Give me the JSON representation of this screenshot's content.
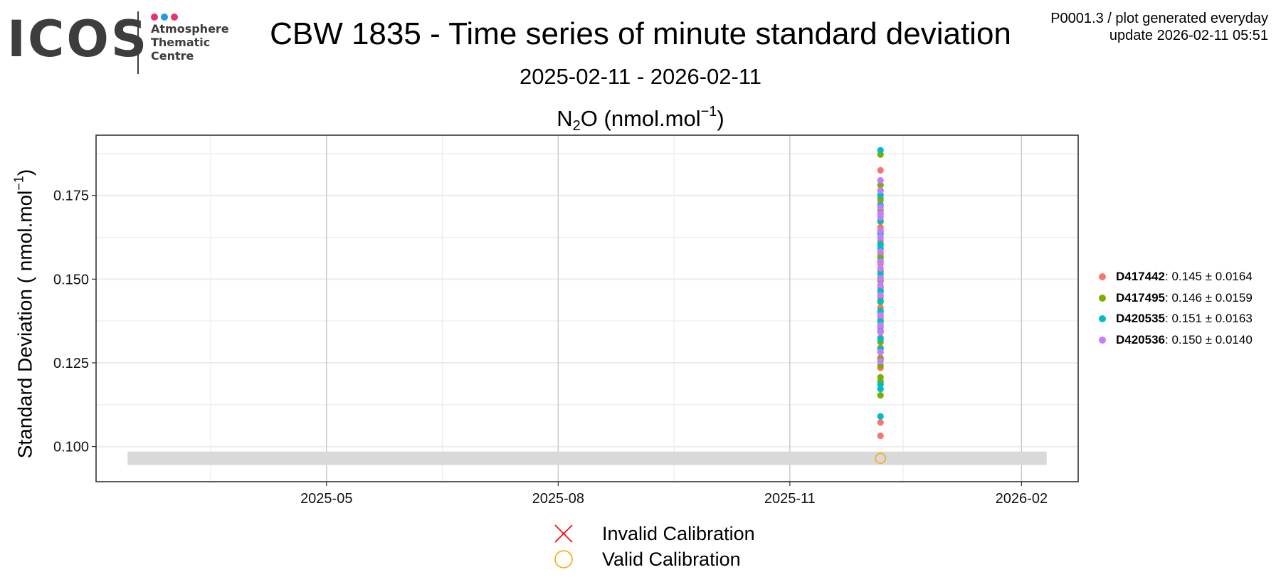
{
  "logo": {
    "text": "ICOS",
    "line1": "Atmosphere",
    "line2": "Thematic",
    "line3": "Centre",
    "dot_colors": [
      "#e8316e",
      "#1e9be5",
      "#e8316e"
    ]
  },
  "header": {
    "title": "CBW 1835 - Time series of minute standard deviation",
    "subtitle": "2025-02-11 - 2026-02-11",
    "species_main": "N",
    "species_sub": "2",
    "species_mid": "O (nmol.mol",
    "species_sup": "−1",
    "species_end": ")",
    "corner_line1": "P0001.3 / plot generated everyday",
    "corner_line2": "update  2026-02-11 05:51"
  },
  "axis": {
    "ylabel_main": "Standard Deviation ( nmol.mol",
    "ylabel_sup": "−1",
    "ylabel_end": ")"
  },
  "chart_data": {
    "type": "scatter",
    "title": "CBW 1835 - Time series of minute standard deviation",
    "subtitle": "2025-02-11 - 2026-02-11",
    "xlabel": "",
    "ylabel": "Standard Deviation ( nmol.mol−1)",
    "x_range": [
      "2025-02-11",
      "2026-02-11"
    ],
    "x_ticks": [
      "2025-05",
      "2025-08",
      "2025-11",
      "2026-02"
    ],
    "ylim": [
      0.0895,
      0.193
    ],
    "y_ticks": [
      0.1,
      0.125,
      0.15,
      0.175
    ],
    "y_tick_labels": [
      "0.100",
      "0.125",
      "0.150",
      "0.175"
    ],
    "grid": true,
    "legend_position": "right",
    "series": [
      {
        "name": "D417442",
        "color": "#F8766D",
        "mean": "0.145",
        "sd": "0.0164",
        "x": "2025-12-07",
        "values": [
          0.1825,
          0.1765,
          0.1735,
          0.1695,
          0.1655,
          0.1615,
          0.1575,
          0.1545,
          0.1505,
          0.1475,
          0.1445,
          0.1415,
          0.1385,
          0.1355,
          0.1325,
          0.1295,
          0.1265,
          0.1235,
          0.1195,
          0.1072,
          0.1032
        ]
      },
      {
        "name": "D417495",
        "color": "#7CAE00",
        "mean": "0.146",
        "sd": "0.0159",
        "x": "2025-12-07",
        "values": [
          0.1872,
          0.1781,
          0.1742,
          0.1705,
          0.1672,
          0.1642,
          0.1602,
          0.1565,
          0.1525,
          0.1495,
          0.1462,
          0.1432,
          0.1402,
          0.1372,
          0.1342,
          0.1312,
          0.1282,
          0.1262,
          0.1242,
          0.1207,
          0.1192,
          0.1153
        ]
      },
      {
        "name": "D420535",
        "color": "#00BFC4",
        "mean": "0.151",
        "sd": "0.0163",
        "x": "2025-12-07",
        "values": [
          0.1885,
          0.1752,
          0.1722,
          0.1675,
          0.1635,
          0.1605,
          0.1592,
          0.1555,
          0.1515,
          0.1465,
          0.1435,
          0.1405,
          0.1375,
          0.1345,
          0.1322,
          0.1292,
          0.1185,
          0.1172,
          0.109
        ]
      },
      {
        "name": "D420536",
        "color": "#C77CFF",
        "mean": "0.150",
        "sd": "0.0140",
        "x": "2025-12-07",
        "values": [
          0.1795,
          0.1765,
          0.1715,
          0.1695,
          0.1685,
          0.1645,
          0.1625,
          0.1582,
          0.1552,
          0.1532,
          0.1502,
          0.1482,
          0.1452,
          0.1392,
          0.1362,
          0.1342,
          0.1282,
          0.1255
        ]
      }
    ],
    "valid_calibration": [
      {
        "x": "2025-12-07",
        "y": 0.0965
      }
    ],
    "invalid_calibration": [],
    "reference_band": [
      0.0945,
      0.0985
    ],
    "colors": {
      "panel_border": "#333333",
      "major_grid": "#c8c8c8",
      "minor_grid": "#ececec",
      "band": "#d9d9d9",
      "valid_calibration": "#FFA500",
      "invalid_calibration": "#FF0000"
    }
  },
  "bottom_legend": {
    "invalid_label": "Invalid Calibration",
    "valid_label": "Valid Calibration"
  }
}
